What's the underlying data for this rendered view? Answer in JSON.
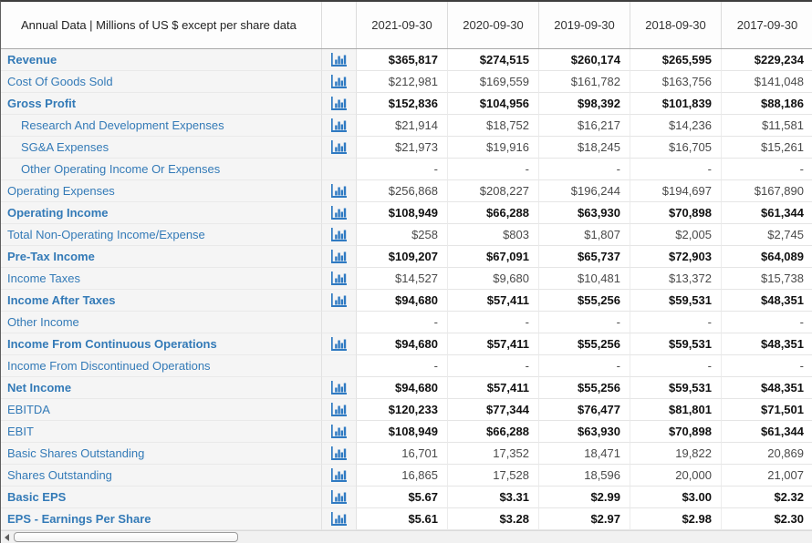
{
  "table": {
    "header": {
      "label": "Annual Data | Millions of US $ except per share data",
      "columns": [
        "2021-09-30",
        "2020-09-30",
        "2019-09-30",
        "2018-09-30",
        "2017-09-30"
      ]
    },
    "rows": [
      {
        "label": "Revenue",
        "bold_label": true,
        "bold_values": true,
        "indent": false,
        "has_chart_icon": true,
        "values": [
          "$365,817",
          "$274,515",
          "$260,174",
          "$265,595",
          "$229,234"
        ]
      },
      {
        "label": "Cost Of Goods Sold",
        "bold_label": false,
        "bold_values": false,
        "indent": false,
        "has_chart_icon": true,
        "values": [
          "$212,981",
          "$169,559",
          "$161,782",
          "$163,756",
          "$141,048"
        ]
      },
      {
        "label": "Gross Profit",
        "bold_label": true,
        "bold_values": true,
        "indent": false,
        "has_chart_icon": true,
        "values": [
          "$152,836",
          "$104,956",
          "$98,392",
          "$101,839",
          "$88,186"
        ]
      },
      {
        "label": "Research And Development Expenses",
        "bold_label": false,
        "bold_values": false,
        "indent": true,
        "has_chart_icon": true,
        "values": [
          "$21,914",
          "$18,752",
          "$16,217",
          "$14,236",
          "$11,581"
        ]
      },
      {
        "label": "SG&A Expenses",
        "bold_label": false,
        "bold_values": false,
        "indent": true,
        "has_chart_icon": true,
        "values": [
          "$21,973",
          "$19,916",
          "$18,245",
          "$16,705",
          "$15,261"
        ]
      },
      {
        "label": "Other Operating Income Or Expenses",
        "bold_label": false,
        "bold_values": false,
        "indent": true,
        "has_chart_icon": false,
        "values": [
          "-",
          "-",
          "-",
          "-",
          "-"
        ]
      },
      {
        "label": "Operating Expenses",
        "bold_label": false,
        "bold_values": false,
        "indent": false,
        "has_chart_icon": true,
        "values": [
          "$256,868",
          "$208,227",
          "$196,244",
          "$194,697",
          "$167,890"
        ]
      },
      {
        "label": "Operating Income",
        "bold_label": true,
        "bold_values": true,
        "indent": false,
        "has_chart_icon": true,
        "values": [
          "$108,949",
          "$66,288",
          "$63,930",
          "$70,898",
          "$61,344"
        ]
      },
      {
        "label": "Total Non-Operating Income/Expense",
        "bold_label": false,
        "bold_values": false,
        "indent": false,
        "has_chart_icon": true,
        "values": [
          "$258",
          "$803",
          "$1,807",
          "$2,005",
          "$2,745"
        ]
      },
      {
        "label": "Pre-Tax Income",
        "bold_label": true,
        "bold_values": true,
        "indent": false,
        "has_chart_icon": true,
        "values": [
          "$109,207",
          "$67,091",
          "$65,737",
          "$72,903",
          "$64,089"
        ]
      },
      {
        "label": "Income Taxes",
        "bold_label": false,
        "bold_values": false,
        "indent": false,
        "has_chart_icon": true,
        "values": [
          "$14,527",
          "$9,680",
          "$10,481",
          "$13,372",
          "$15,738"
        ]
      },
      {
        "label": "Income After Taxes",
        "bold_label": true,
        "bold_values": true,
        "indent": false,
        "has_chart_icon": true,
        "values": [
          "$94,680",
          "$57,411",
          "$55,256",
          "$59,531",
          "$48,351"
        ]
      },
      {
        "label": "Other Income",
        "bold_label": false,
        "bold_values": false,
        "indent": false,
        "has_chart_icon": false,
        "values": [
          "-",
          "-",
          "-",
          "-",
          "-"
        ]
      },
      {
        "label": "Income From Continuous Operations",
        "bold_label": true,
        "bold_values": true,
        "indent": false,
        "has_chart_icon": true,
        "values": [
          "$94,680",
          "$57,411",
          "$55,256",
          "$59,531",
          "$48,351"
        ]
      },
      {
        "label": "Income From Discontinued Operations",
        "bold_label": false,
        "bold_values": false,
        "indent": false,
        "has_chart_icon": false,
        "values": [
          "-",
          "-",
          "-",
          "-",
          "-"
        ]
      },
      {
        "label": "Net Income",
        "bold_label": true,
        "bold_values": true,
        "indent": false,
        "has_chart_icon": true,
        "values": [
          "$94,680",
          "$57,411",
          "$55,256",
          "$59,531",
          "$48,351"
        ]
      },
      {
        "label": "EBITDA",
        "bold_label": false,
        "bold_values": true,
        "indent": false,
        "has_chart_icon": true,
        "values": [
          "$120,233",
          "$77,344",
          "$76,477",
          "$81,801",
          "$71,501"
        ]
      },
      {
        "label": "EBIT",
        "bold_label": false,
        "bold_values": true,
        "indent": false,
        "has_chart_icon": true,
        "values": [
          "$108,949",
          "$66,288",
          "$63,930",
          "$70,898",
          "$61,344"
        ]
      },
      {
        "label": "Basic Shares Outstanding",
        "bold_label": false,
        "bold_values": false,
        "indent": false,
        "has_chart_icon": true,
        "values": [
          "16,701",
          "17,352",
          "18,471",
          "19,822",
          "20,869"
        ]
      },
      {
        "label": "Shares Outstanding",
        "bold_label": false,
        "bold_values": false,
        "indent": false,
        "has_chart_icon": true,
        "values": [
          "16,865",
          "17,528",
          "18,596",
          "20,000",
          "21,007"
        ]
      },
      {
        "label": "Basic EPS",
        "bold_label": true,
        "bold_values": true,
        "indent": false,
        "has_chart_icon": true,
        "values": [
          "$5.67",
          "$3.31",
          "$2.99",
          "$3.00",
          "$2.32"
        ]
      },
      {
        "label": "EPS - Earnings Per Share",
        "bold_label": true,
        "bold_values": true,
        "indent": false,
        "has_chart_icon": true,
        "values": [
          "$5.61",
          "$3.28",
          "$2.97",
          "$2.98",
          "$2.30"
        ]
      }
    ]
  },
  "icons": {
    "chart_icon": "bar-chart-icon",
    "scroll_left_icon": "left-arrow-icon"
  },
  "colors": {
    "link_blue": "#337ab7",
    "icon_blue": "#2f7ac2",
    "pinned_column_bg": "#f5f5f5",
    "value_text": "#4a4a4a",
    "bold_value_text": "#111111",
    "header_border": "#a9a9a9"
  }
}
